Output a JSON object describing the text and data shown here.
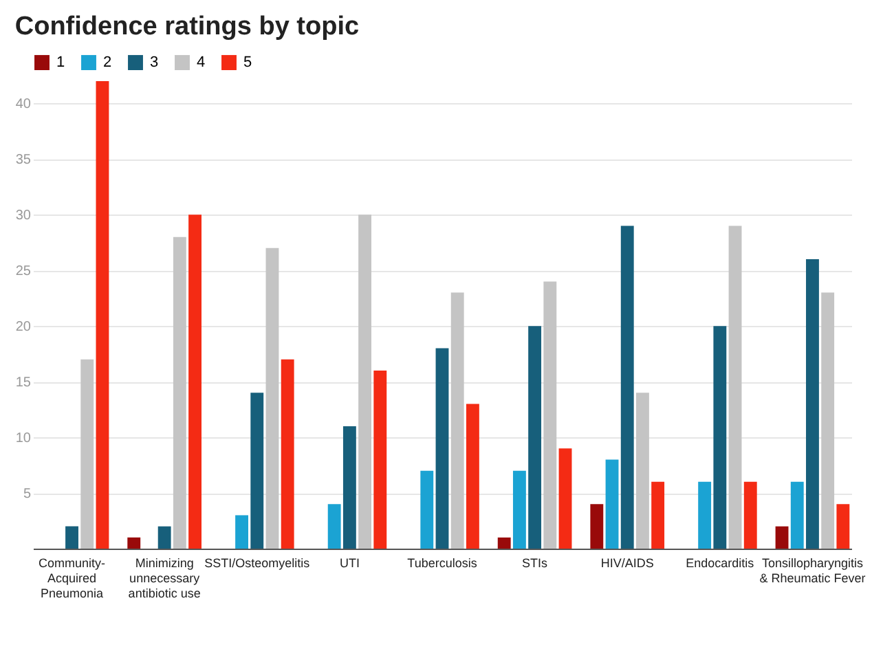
{
  "chart_data": {
    "type": "bar",
    "title": "Confidence ratings by topic",
    "categories": [
      "Community-Acquired Pneumonia",
      "Minimizing unnecessary antibiotic use",
      "SSTI/Osteomyelitis",
      "UTI",
      "Tuberculosis",
      "STIs",
      "HIV/AIDS",
      "Endocarditis",
      "Tonsillopharyngitis & Rheumatic Fever"
    ],
    "series": [
      {
        "name": "1",
        "color": "#990a0a",
        "values": [
          null,
          1,
          null,
          null,
          null,
          1,
          4,
          null,
          2
        ]
      },
      {
        "name": "2",
        "color": "#1ba3d3",
        "values": [
          null,
          null,
          3,
          4,
          7,
          7,
          8,
          6,
          6
        ]
      },
      {
        "name": "3",
        "color": "#175f7b",
        "values": [
          2,
          2,
          14,
          11,
          18,
          20,
          29,
          20,
          26
        ]
      },
      {
        "name": "4",
        "color": "#c4c4c4",
        "values": [
          17,
          28,
          27,
          30,
          23,
          24,
          14,
          29,
          23
        ]
      },
      {
        "name": "5",
        "color": "#f42b14",
        "values": [
          42,
          30,
          17,
          16,
          13,
          9,
          6,
          6,
          4
        ]
      }
    ],
    "ylim": [
      0,
      42
    ],
    "yticks": [
      {
        "value": 0,
        "label": null
      },
      5,
      10,
      15,
      20,
      25,
      30,
      35,
      40
    ],
    "grid": "y",
    "legend": "top left"
  }
}
